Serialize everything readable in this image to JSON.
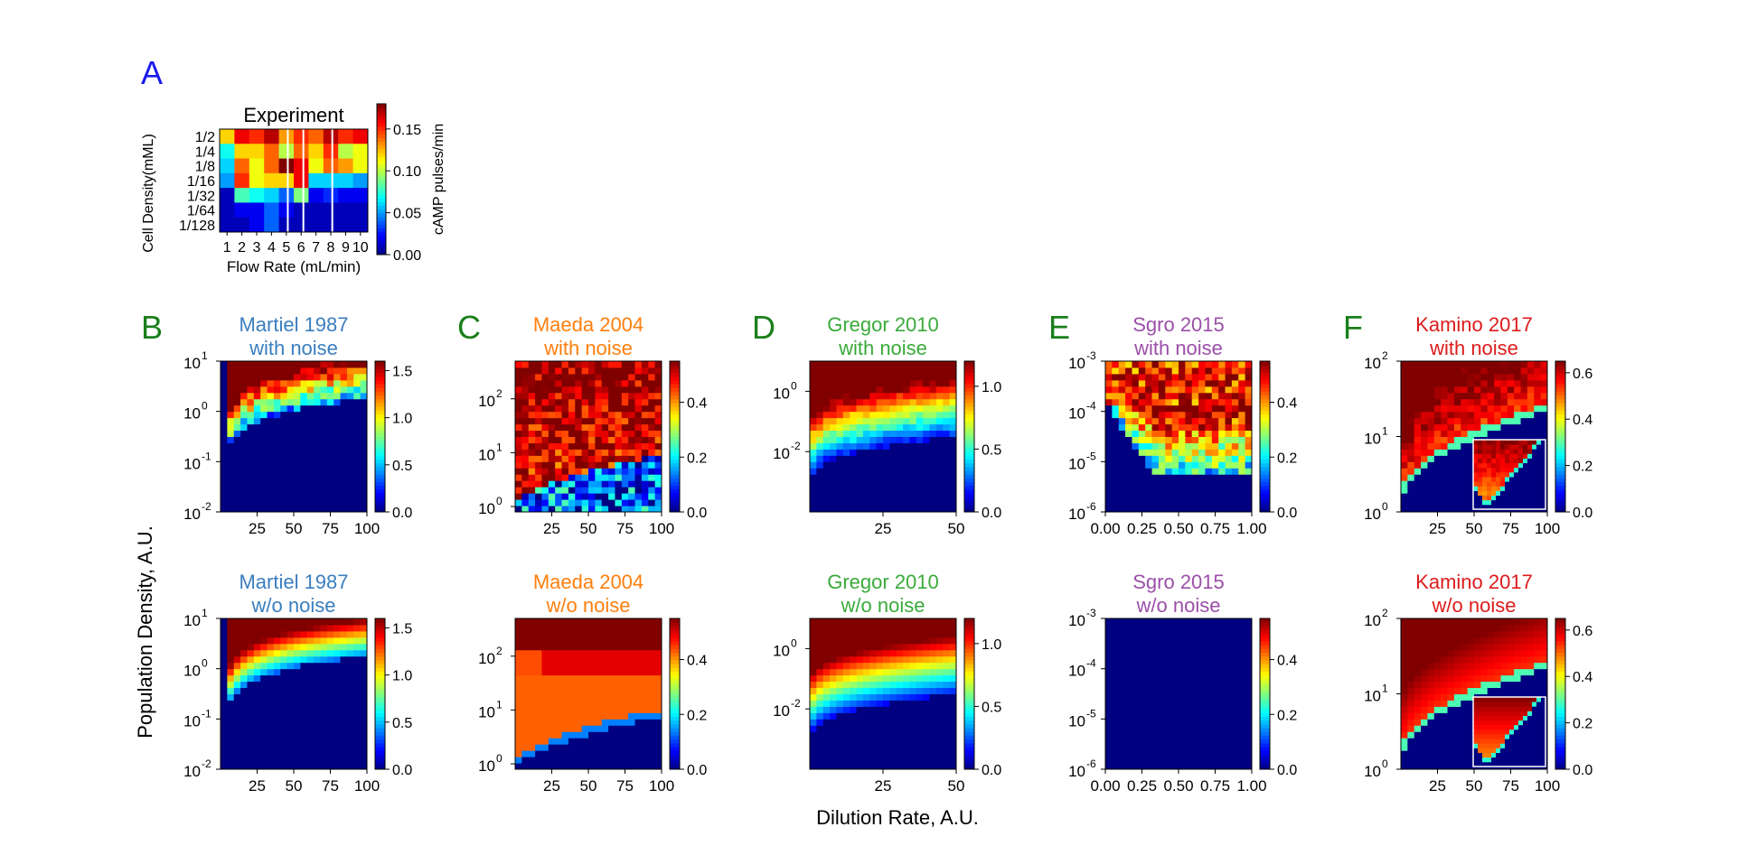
{
  "figure": {
    "shared_ylabel": "Population Density, A.U.",
    "shared_xlabel": "Dilution Rate, A.U.",
    "panel_colors": {
      "letter": "#1a7f1a",
      "letter_A": "#1a1aee"
    }
  },
  "chart_data": [
    {
      "type": "heatmap",
      "panel": "A",
      "title": "Experiment",
      "title_color": "#000000",
      "xlabel": "Flow Rate (mL/min)",
      "ylabel": "Cell Density(mML)",
      "categories_x": [
        "1",
        "2",
        "3",
        "4",
        "5",
        "6",
        "7",
        "8",
        "9",
        "10"
      ],
      "categories_y": [
        "1/2",
        "1/4",
        "1/8",
        "1/16",
        "1/32",
        "1/64",
        "1/128"
      ],
      "values": [
        [
          0.12,
          0.16,
          0.15,
          0.17,
          0.13,
          0.15,
          0.14,
          0.17,
          0.15,
          0.16
        ],
        [
          0.07,
          0.12,
          0.12,
          0.14,
          0.1,
          0.14,
          0.12,
          0.15,
          0.1,
          0.11
        ],
        [
          0.06,
          0.14,
          0.11,
          0.14,
          0.18,
          0.16,
          0.11,
          0.14,
          0.13,
          0.11
        ],
        [
          0.05,
          0.15,
          0.11,
          0.12,
          0.12,
          0.16,
          0.06,
          0.06,
          0.06,
          0.05
        ],
        [
          0.01,
          0.08,
          0.07,
          0.06,
          0.04,
          0.09,
          0.02,
          0.03,
          0.02,
          0.02
        ],
        [
          0.01,
          0.02,
          0.02,
          0.04,
          0.02,
          0.01,
          0.01,
          0.01,
          0.01,
          0.01
        ],
        [
          0.01,
          0.01,
          0.02,
          0.04,
          0.01,
          0.01,
          0.01,
          0.01,
          0.01,
          0.01
        ]
      ],
      "colorbar": {
        "label": "cAMP pulses/min",
        "min": 0,
        "max": 0.18,
        "ticks": [
          "0.00",
          "0.05",
          "0.10",
          "0.15"
        ]
      }
    },
    {
      "type": "heatmap",
      "panel": "B",
      "title": [
        "Martiel 1987",
        "with noise"
      ],
      "title_color": "#3a7ebf",
      "model": "martiel",
      "noise": true,
      "x_range": [
        0,
        100
      ],
      "x_ticks": [
        "25",
        "50",
        "75",
        "100"
      ],
      "y_scale": "log",
      "y_range": [
        -2,
        1
      ],
      "y_ticks": [
        "-2",
        "-1",
        "0",
        "1"
      ],
      "colorbar": {
        "min": 0,
        "max": 1.6,
        "ticks": [
          "0.0",
          "0.5",
          "1.0",
          "1.5"
        ]
      }
    },
    {
      "type": "heatmap",
      "panel": "C",
      "title": [
        "Maeda 2004",
        "with noise"
      ],
      "title_color": "#ff7f0e",
      "model": "maeda",
      "noise": true,
      "x_range": [
        0,
        100
      ],
      "x_ticks": [
        "25",
        "50",
        "75",
        "100"
      ],
      "y_scale": "log",
      "y_range": [
        -0.1,
        2.7
      ],
      "y_ticks": [
        "0",
        "1",
        "2"
      ],
      "colorbar": {
        "min": 0,
        "max": 0.55,
        "ticks": [
          "0.0",
          "0.2",
          "0.4"
        ]
      }
    },
    {
      "type": "heatmap",
      "panel": "D",
      "title": [
        "Gregor 2010",
        "with noise"
      ],
      "title_color": "#3aaa3a",
      "model": "gregor",
      "noise": true,
      "x_range": [
        0,
        50
      ],
      "x_ticks": [
        "25",
        "50"
      ],
      "y_scale": "log",
      "y_range": [
        -4,
        1
      ],
      "y_ticks": [
        "-2",
        "0"
      ],
      "colorbar": {
        "min": 0,
        "max": 1.2,
        "ticks": [
          "0.0",
          "0.5",
          "1.0"
        ]
      }
    },
    {
      "type": "heatmap",
      "panel": "E",
      "title": [
        "Sgro 2015",
        "with noise"
      ],
      "title_color": "#9b4fa8",
      "model": "sgro",
      "noise": true,
      "x_range": [
        0,
        1
      ],
      "x_ticks": [
        "0.00",
        "0.25",
        "0.50",
        "0.75",
        "1.00"
      ],
      "y_scale": "log",
      "y_range": [
        -6,
        -3
      ],
      "y_ticks": [
        "-6",
        "-5",
        "-4",
        "-3"
      ],
      "colorbar": {
        "min": 0,
        "max": 0.55,
        "ticks": [
          "0.0",
          "0.2",
          "0.4"
        ]
      }
    },
    {
      "type": "heatmap",
      "panel": "F",
      "title": [
        "Kamino 2017",
        "with noise"
      ],
      "title_color": "#dd1c1c",
      "model": "kamino",
      "noise": true,
      "x_range": [
        0,
        100
      ],
      "x_ticks": [
        "25",
        "50",
        "75",
        "100"
      ],
      "y_scale": "log",
      "y_range": [
        0,
        2
      ],
      "y_ticks": [
        "0",
        "1",
        "2"
      ],
      "colorbar": {
        "min": 0,
        "max": 0.65,
        "ticks": [
          "0.0",
          "0.2",
          "0.4",
          "0.6"
        ]
      }
    },
    {
      "type": "heatmap",
      "panel": "B2",
      "title": [
        "Martiel 1987",
        "w/o noise"
      ],
      "title_color": "#3a7ebf",
      "model": "martiel",
      "noise": false,
      "x_range": [
        0,
        100
      ],
      "x_ticks": [
        "25",
        "50",
        "75",
        "100"
      ],
      "y_scale": "log",
      "y_range": [
        -2,
        1
      ],
      "y_ticks": [
        "-2",
        "-1",
        "0",
        "1"
      ],
      "colorbar": {
        "min": 0,
        "max": 1.6,
        "ticks": [
          "0.0",
          "0.5",
          "1.0",
          "1.5"
        ]
      }
    },
    {
      "type": "heatmap",
      "panel": "C2",
      "title": [
        "Maeda 2004",
        "w/o noise"
      ],
      "title_color": "#ff7f0e",
      "model": "maeda",
      "noise": false,
      "x_range": [
        0,
        100
      ],
      "x_ticks": [
        "25",
        "50",
        "75",
        "100"
      ],
      "y_scale": "log",
      "y_range": [
        -0.1,
        2.7
      ],
      "y_ticks": [
        "0",
        "1",
        "2"
      ],
      "colorbar": {
        "min": 0,
        "max": 0.55,
        "ticks": [
          "0.0",
          "0.2",
          "0.4"
        ]
      }
    },
    {
      "type": "heatmap",
      "panel": "D2",
      "title": [
        "Gregor 2010",
        "w/o noise"
      ],
      "title_color": "#3aaa3a",
      "model": "gregor",
      "noise": false,
      "x_range": [
        0,
        50
      ],
      "x_ticks": [
        "25",
        "50"
      ],
      "y_scale": "log",
      "y_range": [
        -4,
        1
      ],
      "y_ticks": [
        "-2",
        "0"
      ],
      "colorbar": {
        "min": 0,
        "max": 1.2,
        "ticks": [
          "0.0",
          "0.5",
          "1.0"
        ]
      }
    },
    {
      "type": "heatmap",
      "panel": "E2",
      "title": [
        "Sgro 2015",
        "w/o noise"
      ],
      "title_color": "#9b4fa8",
      "model": "sgro",
      "noise": false,
      "x_range": [
        0,
        1
      ],
      "x_ticks": [
        "0.00",
        "0.25",
        "0.50",
        "0.75",
        "1.00"
      ],
      "y_scale": "log",
      "y_range": [
        -6,
        -3
      ],
      "y_ticks": [
        "-6",
        "-5",
        "-4",
        "-3"
      ],
      "colorbar": {
        "min": 0,
        "max": 0.55,
        "ticks": [
          "0.0",
          "0.2",
          "0.4"
        ]
      }
    },
    {
      "type": "heatmap",
      "panel": "F2",
      "title": [
        "Kamino 2017",
        "w/o noise"
      ],
      "title_color": "#dd1c1c",
      "model": "kamino",
      "noise": false,
      "x_range": [
        0,
        100
      ],
      "x_ticks": [
        "25",
        "50",
        "75",
        "100"
      ],
      "y_scale": "log",
      "y_range": [
        0,
        2
      ],
      "y_ticks": [
        "0",
        "1",
        "2"
      ],
      "colorbar": {
        "min": 0,
        "max": 0.65,
        "ticks": [
          "0.0",
          "0.2",
          "0.4",
          "0.6"
        ]
      }
    }
  ]
}
